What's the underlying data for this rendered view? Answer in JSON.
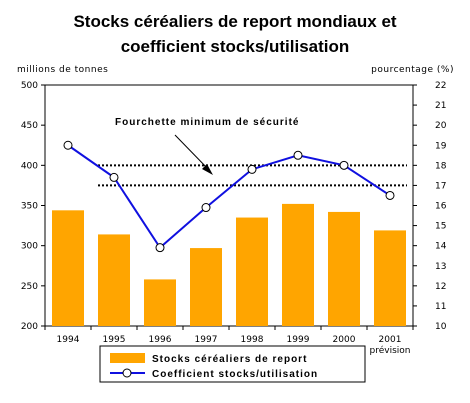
{
  "chart_data": {
    "type": "bar+line",
    "title_line1": "Stocks céréaliers de report mondiaux et",
    "title_line2": "coefficient stocks/utilisation",
    "ylabel_left": "millions de tonnes",
    "ylabel_right": "pourcentage (%)",
    "categories": [
      "1994",
      "1995",
      "1996",
      "1997",
      "1998",
      "1999",
      "2000",
      "2001"
    ],
    "category_sublabel": {
      "index": 7,
      "text": "prévision"
    },
    "ylim_left": [
      200,
      500
    ],
    "yticks_left": [
      200,
      250,
      300,
      350,
      400,
      450,
      500
    ],
    "ylim_right": [
      10,
      22
    ],
    "yticks_right": [
      10,
      11,
      12,
      13,
      14,
      15,
      16,
      17,
      18,
      19,
      20,
      21,
      22
    ],
    "series": [
      {
        "name": "Stocks céréaliers de report",
        "kind": "bar",
        "axis": "left",
        "color": "#FFA500",
        "values": [
          344,
          314,
          258,
          297,
          335,
          352,
          342,
          319
        ]
      },
      {
        "name": "Coefficient stocks/utilisation",
        "kind": "line",
        "axis": "right",
        "color": "#1010E0",
        "values": [
          19.0,
          17.4,
          13.9,
          15.9,
          17.8,
          18.5,
          18.0,
          16.5
        ]
      }
    ],
    "reference_band": {
      "axis": "right",
      "lower": 17.0,
      "upper": 18.0,
      "style": "dotted"
    },
    "annotation": "Fourchette minimum de sécurité",
    "grid": false,
    "legend_placement": "bottom"
  }
}
